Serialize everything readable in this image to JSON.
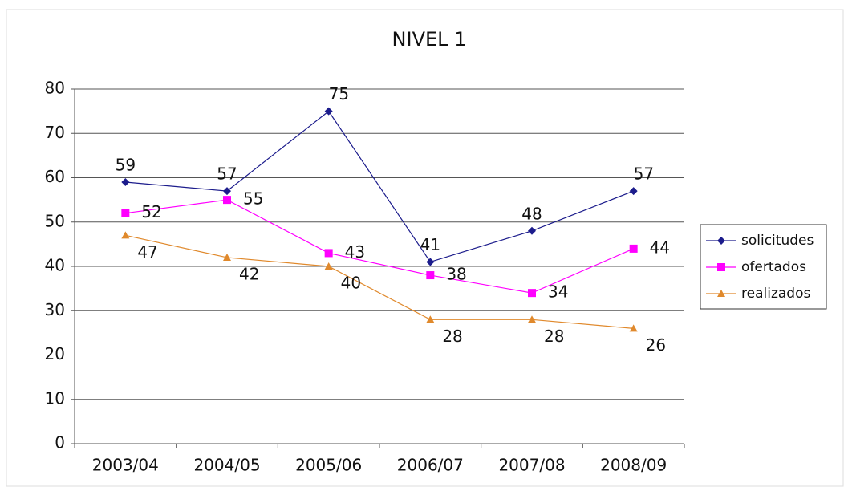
{
  "chart_data": {
    "type": "line",
    "title": "NIVEL 1",
    "categories": [
      "2003/04",
      "2004/05",
      "2005/06",
      "2006/07",
      "2007/08",
      "2008/09"
    ],
    "series": [
      {
        "name": "solicitudes",
        "color": "#1c1c8c",
        "marker": "diamond",
        "values": [
          59,
          57,
          75,
          41,
          48,
          57
        ]
      },
      {
        "name": "ofertados",
        "color": "#ff00ff",
        "marker": "square",
        "values": [
          52,
          55,
          43,
          38,
          34,
          44
        ]
      },
      {
        "name": "realizados",
        "color": "#e0892c",
        "marker": "triangle",
        "values": [
          47,
          42,
          40,
          28,
          28,
          26
        ]
      }
    ],
    "ylim": [
      0,
      80
    ],
    "yticks": [
      0,
      10,
      20,
      30,
      40,
      50,
      60,
      70,
      80
    ],
    "grid": true,
    "legend": "right"
  }
}
